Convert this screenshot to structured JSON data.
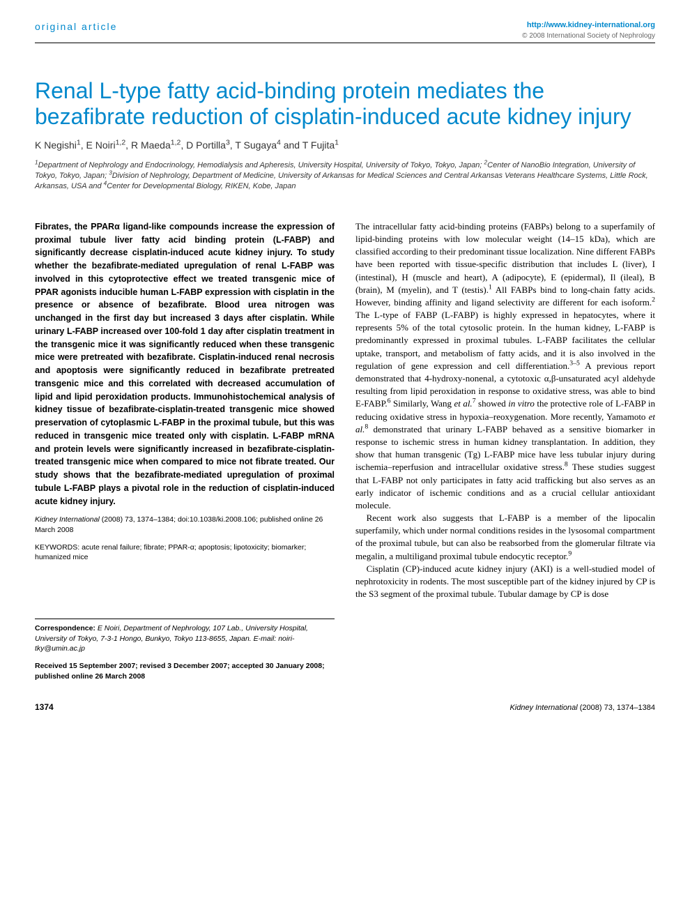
{
  "header": {
    "article_type": "original article",
    "url": "http://www.kidney-international.org",
    "copyright": "© 2008 International Society of Nephrology"
  },
  "title": "Renal L-type fatty acid-binding protein mediates the bezafibrate reduction of cisplatin-induced acute kidney injury",
  "authors_html": "K Negishi<sup>1</sup>, E Noiri<sup>1,2</sup>, R Maeda<sup>1,2</sup>, D Portilla<sup>3</sup>, T Sugaya<sup>4</sup> and T Fujita<sup>1</sup>",
  "affiliations_html": "<sup>1</sup>Department of Nephrology and Endocrinology, Hemodialysis and Apheresis, University Hospital, University of Tokyo, Tokyo, Japan; <sup>2</sup>Center of NanoBio Integration, University of Tokyo, Tokyo, Japan; <sup>3</sup>Division of Nephrology, Department of Medicine, University of Arkansas for Medical Sciences and Central Arkansas Veterans Healthcare Systems, Little Rock, Arkansas, USA and <sup>4</sup>Center for Developmental Biology, RIKEN, Kobe, Japan",
  "abstract": "Fibrates, the PPARα ligand-like compounds increase the expression of proximal tubule liver fatty acid binding protein (L-FABP) and significantly decrease cisplatin-induced acute kidney injury. To study whether the bezafibrate-mediated upregulation of renal L-FABP was involved in this cytoprotective effect we treated transgenic mice of PPAR agonists inducible human L-FABP expression with cisplatin in the presence or absence of bezafibrate. Blood urea nitrogen was unchanged in the first day but increased 3 days after cisplatin. While urinary L-FABP increased over 100-fold 1 day after cisplatin treatment in the transgenic mice it was significantly reduced when these transgenic mice were pretreated with bezafibrate. Cisplatin-induced renal necrosis and apoptosis were significantly reduced in bezafibrate pretreated transgenic mice and this correlated with decreased accumulation of lipid and lipid peroxidation products. Immunohistochemical analysis of kidney tissue of bezafibrate-cisplatin-treated transgenic mice showed preservation of cytoplasmic L-FABP in the proximal tubule, but this was reduced in transgenic mice treated only with cisplatin. L-FABP mRNA and protein levels were significantly increased in bezafibrate-cisplatin-treated transgenic mice when compared to mice not fibrate treated. Our study shows that the bezafibrate-mediated upregulation of proximal tubule L-FABP plays a pivotal role in the reduction of cisplatin-induced acute kidney injury.",
  "citation": {
    "journal": "Kidney International",
    "year_vol": "(2008) 73,",
    "pages": "1374–1384;",
    "doi": "doi:10.1038/ki.2008.106;",
    "pub_online": "published online 26 March 2008"
  },
  "keywords": "KEYWORDS: acute renal failure; fibrate; PPAR-α; apoptosis; lipotoxicity; biomarker; humanized mice",
  "correspondence_html": "<b>Correspondence:</b> <i>E Noiri, Department of Nephrology, 107 Lab., University Hospital, University of Tokyo, 7-3-1 Hongo, Bunkyo, Tokyo 113-8655, Japan. E-mail: noiri-tky@umin.ac.jp</i>",
  "received": "Received 15 September 2007; revised 3 December 2007; accepted 30 January 2008; published online 26 March 2008",
  "body_paragraphs": [
    "The intracellular fatty acid-binding proteins (FABPs) belong to a superfamily of lipid-binding proteins with low molecular weight (14–15 kDa), which are classified according to their predominant tissue localization. Nine different FABPs have been reported with tissue-specific distribution that includes L (liver), I (intestinal), H (muscle and heart), A (adipocyte), E (epidermal), Il (ileal), B (brain), M (myelin), and T (testis).<sup>1</sup> All FABPs bind to long-chain fatty acids. However, binding affinity and ligand selectivity are different for each isoform.<sup>2</sup> The L-type of FABP (L-FABP) is highly expressed in hepatocytes, where it represents 5% of the total cytosolic protein. In the human kidney, L-FABP is predominantly expressed in proximal tubules. L-FABP facilitates the cellular uptake, transport, and metabolism of fatty acids, and it is also involved in the regulation of gene expression and cell differentiation.<sup>3–5</sup> A previous report demonstrated that 4-hydroxy-nonenal, a cytotoxic α,β-unsaturated acyl aldehyde resulting from lipid peroxidation in response to oxidative stress, was able to bind E-FABP.<sup>6</sup> Similarly, Wang <i>et al.</i><sup>7</sup> showed <i>in vitro</i> the protective role of L-FABP in reducing oxidative stress in hypoxia–reoxygenation. More recently, Yamamoto <i>et al.</i><sup>8</sup> demonstrated that urinary L-FABP behaved as a sensitive biomarker in response to ischemic stress in human kidney transplantation. In addition, they show that human transgenic (Tg) L-FABP mice have less tubular injury during ischemia–reperfusion and intracellular oxidative stress.<sup>8</sup> These studies suggest that L-FABP not only participates in fatty acid trafficking but also serves as an early indicator of ischemic conditions and as a crucial cellular antioxidant molecule.",
    "Recent work also suggests that L-FABP is a member of the lipocalin superfamily, which under normal conditions resides in the lysosomal compartment of the proximal tubule, but can also be reabsorbed from the glomerular filtrate via megalin, a multiligand proximal tubule endocytic receptor.<sup>9</sup>",
    "Cisplatin (CP)-induced acute kidney injury (AKI) is a well-studied model of nephrotoxicity in rodents. The most susceptible part of the kidney injured by CP is the S3 segment of the proximal tubule. Tubular damage by CP is dose"
  ],
  "footer": {
    "page": "1374",
    "journal": "Kidney International",
    "cite": "(2008) 73, 1374–1384"
  },
  "colors": {
    "accent": "#0088cc",
    "text": "#000000",
    "muted": "#666666",
    "background": "#ffffff"
  },
  "typography": {
    "title_fontsize": 32,
    "body_fontsize": 13,
    "abstract_fontsize": 12.5,
    "small_fontsize": 10.5
  }
}
